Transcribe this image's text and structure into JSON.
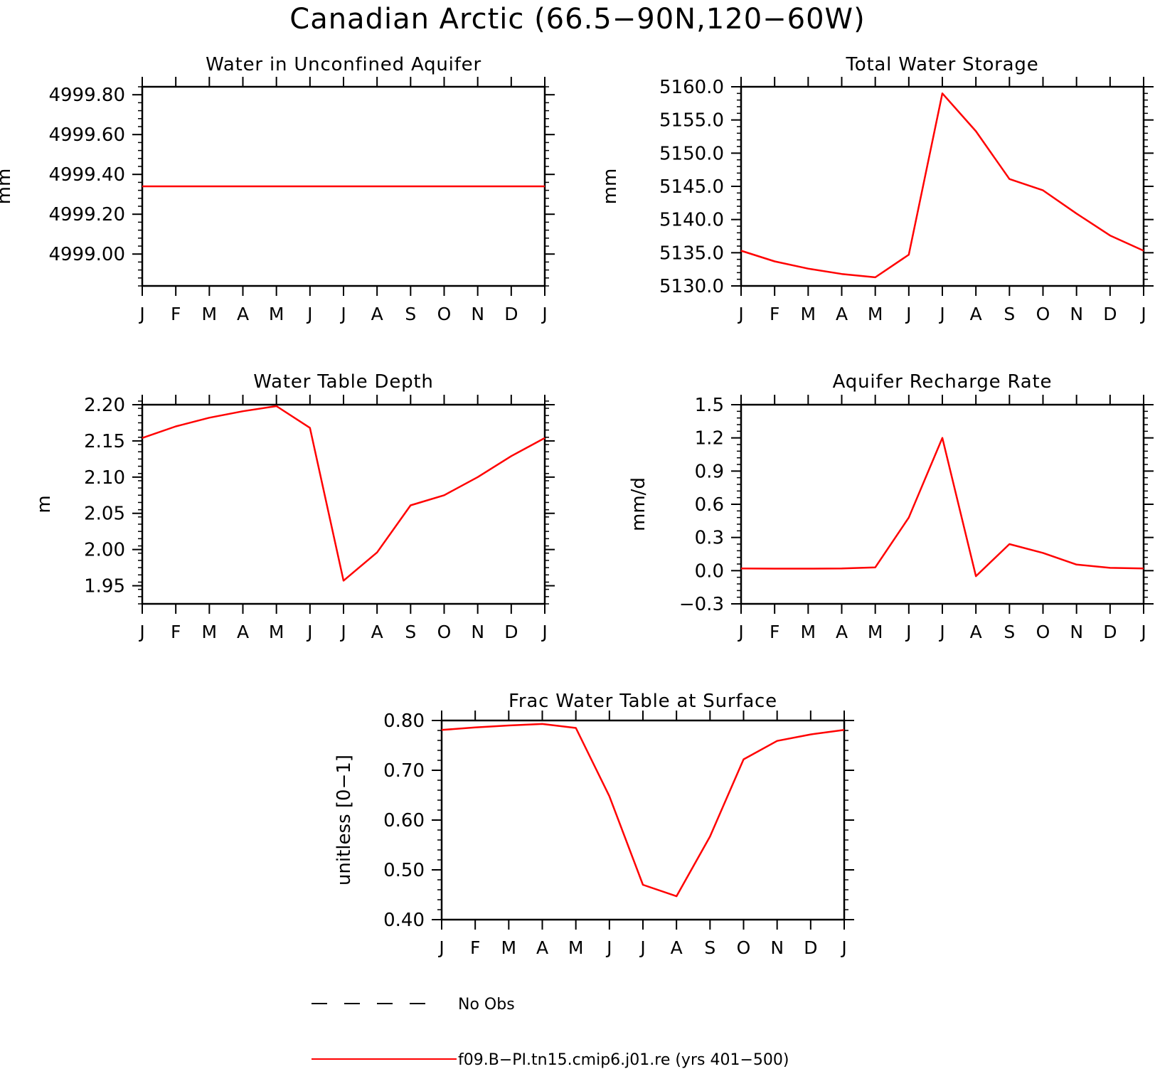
{
  "figure": {
    "title": "Canadian Arctic (66.5−90N,120−60W)",
    "months": [
      "J",
      "F",
      "M",
      "A",
      "M",
      "J",
      "J",
      "A",
      "S",
      "O",
      "N",
      "D",
      "J"
    ],
    "line_color": "#ff0000"
  },
  "legend": {
    "items": [
      {
        "label": "No Obs",
        "style": "dashed",
        "color": "#000000"
      },
      {
        "label": "f09.B−PI.tn15.cmip6.j01.re (yrs 401−500)",
        "style": "solid",
        "color": "#ff0000"
      }
    ]
  },
  "chart_data": [
    {
      "type": "line",
      "title": "Water in Unconfined Aquifer",
      "ylabel": "mm",
      "ylim": [
        4998.84,
        4999.84
      ],
      "yticks": [
        4999.0,
        4999.2,
        4999.4,
        4999.6,
        4999.8
      ],
      "ytick_labels": [
        "4999.00",
        "4999.20",
        "4999.40",
        "4999.60",
        "4999.80"
      ],
      "minor_step": 0.04,
      "series": [
        {
          "values": [
            4999.34,
            4999.34,
            4999.34,
            4999.34,
            4999.34,
            4999.34,
            4999.34,
            4999.34,
            4999.34,
            4999.34,
            4999.34,
            4999.34,
            4999.34
          ]
        }
      ]
    },
    {
      "type": "line",
      "title": "Total Water Storage",
      "ylabel": "mm",
      "ylim": [
        5130.0,
        5160.0
      ],
      "yticks": [
        5130,
        5135,
        5140,
        5145,
        5150,
        5155,
        5160
      ],
      "ytick_labels": [
        "5130.0",
        "5135.0",
        "5140.0",
        "5145.0",
        "5150.0",
        "5155.0",
        "5160.0"
      ],
      "minor_step": 1,
      "series": [
        {
          "values": [
            5135.3,
            5133.7,
            5132.6,
            5131.8,
            5131.3,
            5134.7,
            5159.0,
            5153.3,
            5146.1,
            5144.4,
            5140.9,
            5137.6,
            5135.3
          ]
        }
      ]
    },
    {
      "type": "line",
      "title": "Water Table Depth",
      "ylabel": "m",
      "ylim": [
        1.925,
        2.2
      ],
      "yticks": [
        1.95,
        2.0,
        2.05,
        2.1,
        2.15,
        2.2
      ],
      "ytick_labels": [
        "1.95",
        "2.00",
        "2.05",
        "2.10",
        "2.15",
        "2.20"
      ],
      "minor_step": 0.01,
      "series": [
        {
          "values": [
            2.154,
            2.17,
            2.182,
            2.191,
            2.198,
            2.168,
            1.957,
            1.996,
            2.061,
            2.075,
            2.1,
            2.129,
            2.154
          ]
        }
      ]
    },
    {
      "type": "line",
      "title": "Aquifer Recharge Rate",
      "ylabel": "mm/d",
      "ylim": [
        -0.3,
        1.5
      ],
      "yticks": [
        -0.3,
        0.0,
        0.3,
        0.6,
        0.9,
        1.2,
        1.5
      ],
      "ytick_labels": [
        "−0.3",
        "0.0",
        "0.3",
        "0.6",
        "0.9",
        "1.2",
        "1.5"
      ],
      "minor_step": 0.06,
      "series": [
        {
          "values": [
            0.02,
            0.018,
            0.018,
            0.02,
            0.03,
            0.48,
            1.2,
            -0.05,
            0.24,
            0.16,
            0.055,
            0.025,
            0.02
          ]
        }
      ]
    },
    {
      "type": "line",
      "title": "Frac Water Table at Surface",
      "ylabel": "unitless [0−1]",
      "ylim": [
        0.4,
        0.8
      ],
      "yticks": [
        0.4,
        0.5,
        0.6,
        0.7,
        0.8
      ],
      "ytick_labels": [
        "0.40",
        "0.50",
        "0.60",
        "0.70",
        "0.80"
      ],
      "minor_step": 0.02,
      "series": [
        {
          "values": [
            0.781,
            0.786,
            0.79,
            0.793,
            0.785,
            0.648,
            0.47,
            0.447,
            0.567,
            0.722,
            0.759,
            0.772,
            0.781
          ]
        }
      ]
    }
  ]
}
